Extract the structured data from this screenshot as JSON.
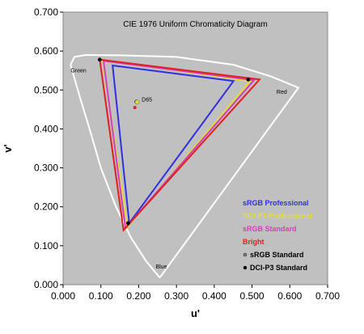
{
  "chart_data": {
    "type": "scatter",
    "title": "CIE 1976 Uniform Chromaticity Diagram",
    "xlabel": "u'",
    "ylabel": "v'",
    "xlim": [
      0.0,
      0.7
    ],
    "ylim": [
      0.0,
      0.7
    ],
    "xticks": [
      "0.000",
      "0.100",
      "0.200",
      "0.300",
      "0.400",
      "0.500",
      "0.600",
      "0.700"
    ],
    "yticks": [
      "0.000",
      "0.100",
      "0.200",
      "0.300",
      "0.400",
      "0.500",
      "0.600",
      "0.700"
    ],
    "plot_background": "#c0c0c0",
    "grid": false,
    "legend_position": "bottom-right",
    "region_labels": [
      {
        "text": "Green",
        "u": 0.02,
        "v": 0.545
      },
      {
        "text": "Red",
        "u": 0.565,
        "v": 0.49
      },
      {
        "text": "Blue",
        "u": 0.245,
        "v": 0.042
      },
      {
        "text": "D65",
        "u": 0.208,
        "v": 0.47
      }
    ],
    "spectral_locus": {
      "color": "#ffffff",
      "points": [
        [
          0.256,
          0.018
        ],
        [
          0.22,
          0.06
        ],
        [
          0.18,
          0.12
        ],
        [
          0.14,
          0.2
        ],
        [
          0.1,
          0.3
        ],
        [
          0.07,
          0.4
        ],
        [
          0.045,
          0.48
        ],
        [
          0.03,
          0.53
        ],
        [
          0.02,
          0.565
        ],
        [
          0.03,
          0.585
        ],
        [
          0.06,
          0.59
        ],
        [
          0.15,
          0.589
        ],
        [
          0.3,
          0.585
        ],
        [
          0.45,
          0.565
        ],
        [
          0.55,
          0.535
        ],
        [
          0.623,
          0.506
        ],
        [
          0.256,
          0.018
        ]
      ]
    },
    "series": [
      {
        "name": "sRGB Professional",
        "color": "#3030e0",
        "type": "triangle",
        "points": [
          [
            0.131,
            0.563
          ],
          [
            0.451,
            0.523
          ],
          [
            0.175,
            0.158
          ]
        ]
      },
      {
        "name": "DCI-P3 Professional",
        "color": "#e0e030",
        "type": "triangle",
        "points": [
          [
            0.105,
            0.577
          ],
          [
            0.495,
            0.523
          ],
          [
            0.17,
            0.148
          ]
        ]
      },
      {
        "name": "sRGB Standard",
        "color": "#d040c0",
        "type": "triangle",
        "points": [
          [
            0.107,
            0.575
          ],
          [
            0.505,
            0.525
          ],
          [
            0.165,
            0.145
          ]
        ]
      },
      {
        "name": "Bright",
        "color": "#e02020",
        "type": "triangle",
        "points": [
          [
            0.097,
            0.578
          ],
          [
            0.52,
            0.527
          ],
          [
            0.16,
            0.14
          ]
        ]
      },
      {
        "name": "sRGB Standard",
        "color": "#808080",
        "type": "points",
        "marker": "dot",
        "points": [
          [
            0.194,
            0.47
          ]
        ]
      },
      {
        "name": "DCI-P3 Standard",
        "color": "#000000",
        "type": "points",
        "marker": "dot",
        "points": [
          [
            0.097,
            0.578
          ],
          [
            0.49,
            0.527
          ],
          [
            0.172,
            0.158
          ]
        ]
      }
    ],
    "white_point": {
      "u": 0.196,
      "v": 0.469,
      "color": "#e0e030"
    },
    "red_dot": {
      "u": 0.19,
      "v": 0.455,
      "color": "#e02020"
    }
  }
}
